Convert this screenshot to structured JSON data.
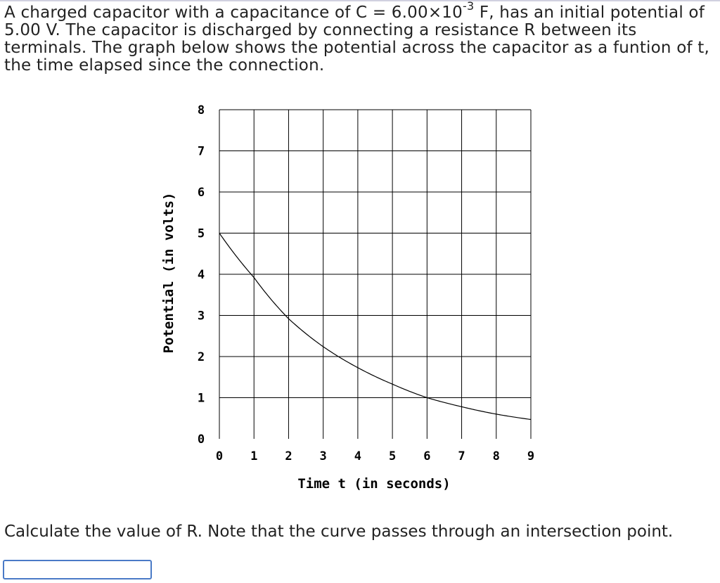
{
  "problem": {
    "text_before_exponent": "A charged capacitor with a capacitance of C = 6.00×10",
    "exponent": "-3",
    "text_after_exponent": " F, has an initial potential of 5.00 V. The capacitor is discharged by connecting a resistance R between its terminals. The graph below shows the potential across the capacitor as a funtion of t, the time elapsed since the connection."
  },
  "chart_data": {
    "type": "line",
    "xlabel": "Time t (in seconds)",
    "ylabel": "Potential (in volts)",
    "xlim": [
      0,
      9
    ],
    "ylim": [
      0,
      8
    ],
    "x_ticks": [
      "0",
      "1",
      "2",
      "3",
      "4",
      "5",
      "6",
      "7",
      "8",
      "9"
    ],
    "y_ticks": [
      "0",
      "1",
      "2",
      "3",
      "4",
      "5",
      "6",
      "7",
      "8"
    ],
    "grid": true,
    "series": [
      {
        "x": [
          0,
          1,
          2,
          3,
          4,
          5,
          6,
          7,
          8,
          9
        ],
        "y": [
          5.0,
          3.92,
          2.92,
          2.24,
          1.73,
          1.33,
          1.0,
          0.78,
          0.6,
          0.47
        ],
        "color": "#000000"
      }
    ]
  },
  "question": {
    "text": "Calculate the value of R. Note that the curve passes through an intersection point."
  },
  "answer": {
    "value": "",
    "placeholder": ""
  }
}
